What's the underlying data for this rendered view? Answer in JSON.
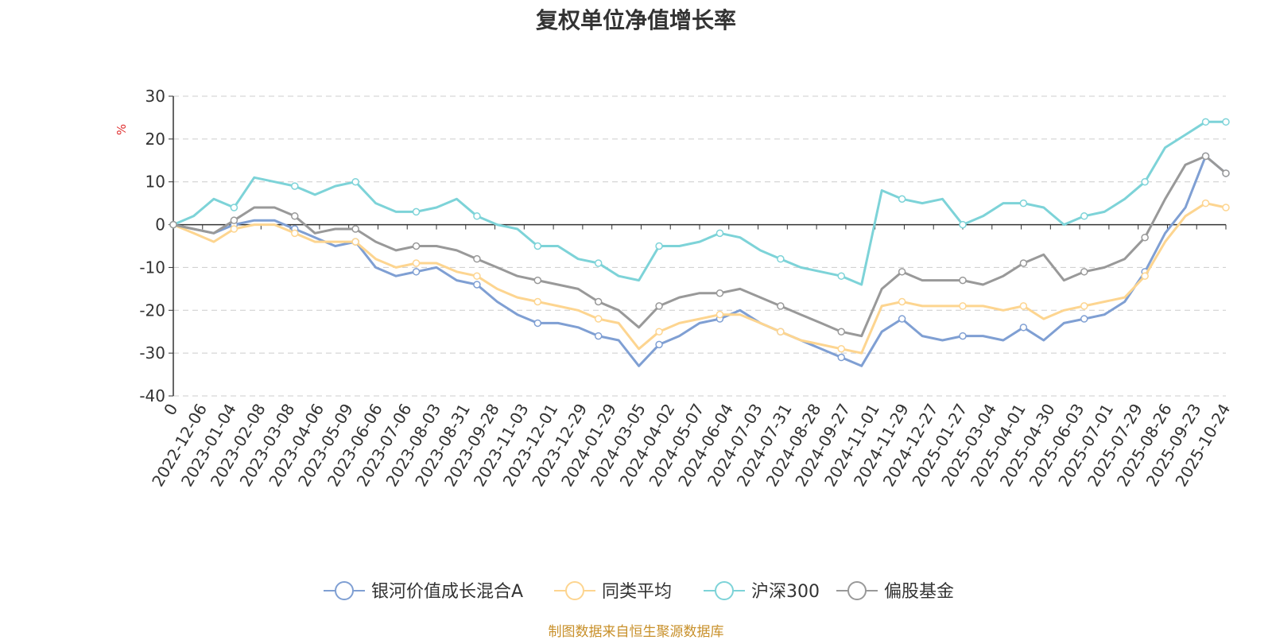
{
  "chart_data": {
    "type": "line",
    "title": "复权单位净值增长率",
    "ylabel": "%",
    "ylim": [
      -40,
      30
    ],
    "yticks": [
      30,
      20,
      10,
      0,
      -10,
      -20,
      -30,
      -40
    ],
    "x_tick_labels": [
      "0",
      "2022-12-06",
      "2023-01-04",
      "2023-02-08",
      "2023-03-08",
      "2023-04-06",
      "2023-05-09",
      "2023-06-06",
      "2023-07-06",
      "2023-08-03",
      "2023-08-31",
      "2023-09-28",
      "2023-11-03",
      "2023-12-01",
      "2023-12-29",
      "2024-01-29",
      "2024-03-05",
      "2024-04-02",
      "2024-05-07",
      "2024-06-04",
      "2024-07-03",
      "2024-07-31",
      "2024-08-28",
      "2024-09-27",
      "2024-11-01",
      "2024-11-29",
      "2024-12-27",
      "2025-01-27",
      "2025-03-04",
      "2025-04-01",
      "2025-04-30",
      "2025-06-03",
      "2025-07-01",
      "2025-07-29",
      "2025-08-26",
      "2025-09-23",
      "2025-10-24"
    ],
    "grid": true,
    "legend_position": "bottom",
    "series": [
      {
        "name": "银河价值成长混合A",
        "color": "#7f9fd3",
        "values": [
          0,
          -1,
          -2,
          0,
          1,
          1,
          -1,
          -3,
          -5,
          -4,
          -10,
          -12,
          -11,
          -10,
          -13,
          -14,
          -18,
          -21,
          -23,
          -23,
          -24,
          -26,
          -27,
          -33,
          -28,
          -26,
          -23,
          -22,
          -20,
          -23,
          -25,
          -27,
          -29,
          -31,
          -33,
          -25,
          -22,
          -26,
          -27,
          -26,
          -26,
          -27,
          -24,
          -27,
          -23,
          -22,
          -21,
          -18,
          -11,
          -2,
          4,
          16,
          12
        ]
      },
      {
        "name": "同类平均",
        "color": "#fdd590",
        "values": [
          0,
          -2,
          -4,
          -1,
          0,
          0,
          -2,
          -4,
          -4,
          -4,
          -8,
          -10,
          -9,
          -9,
          -11,
          -12,
          -15,
          -17,
          -18,
          -19,
          -20,
          -22,
          -23,
          -29,
          -25,
          -23,
          -22,
          -21,
          -21,
          -23,
          -25,
          -27,
          -28,
          -29,
          -30,
          -19,
          -18,
          -19,
          -19,
          -19,
          -19,
          -20,
          -19,
          -22,
          -20,
          -19,
          -18,
          -17,
          -12,
          -4,
          2,
          5,
          4
        ]
      },
      {
        "name": "沪深300",
        "color": "#7dd3d8",
        "values": [
          0,
          2,
          6,
          4,
          11,
          10,
          9,
          7,
          9,
          10,
          5,
          3,
          3,
          4,
          6,
          2,
          0,
          -1,
          -5,
          -5,
          -8,
          -9,
          -12,
          -13,
          -5,
          -5,
          -4,
          -2,
          -3,
          -6,
          -8,
          -10,
          -11,
          -12,
          -14,
          8,
          6,
          5,
          6,
          0,
          2,
          5,
          5,
          4,
          0,
          2,
          3,
          6,
          10,
          18,
          21,
          24,
          24
        ]
      },
      {
        "name": "偏股基金",
        "color": "#999999",
        "values": [
          0,
          -1,
          -2,
          1,
          4,
          4,
          2,
          -2,
          -1,
          -1,
          -4,
          -6,
          -5,
          -5,
          -6,
          -8,
          -10,
          -12,
          -13,
          -14,
          -15,
          -18,
          -20,
          -24,
          -19,
          -17,
          -16,
          -16,
          -15,
          -17,
          -19,
          -21,
          -23,
          -25,
          -26,
          -15,
          -11,
          -13,
          -13,
          -13,
          -14,
          -12,
          -9,
          -7,
          -13,
          -11,
          -10,
          -8,
          -3,
          6,
          14,
          16,
          12
        ]
      }
    ]
  },
  "footer": {
    "source": "制图数据来自恒生聚源数据库"
  }
}
